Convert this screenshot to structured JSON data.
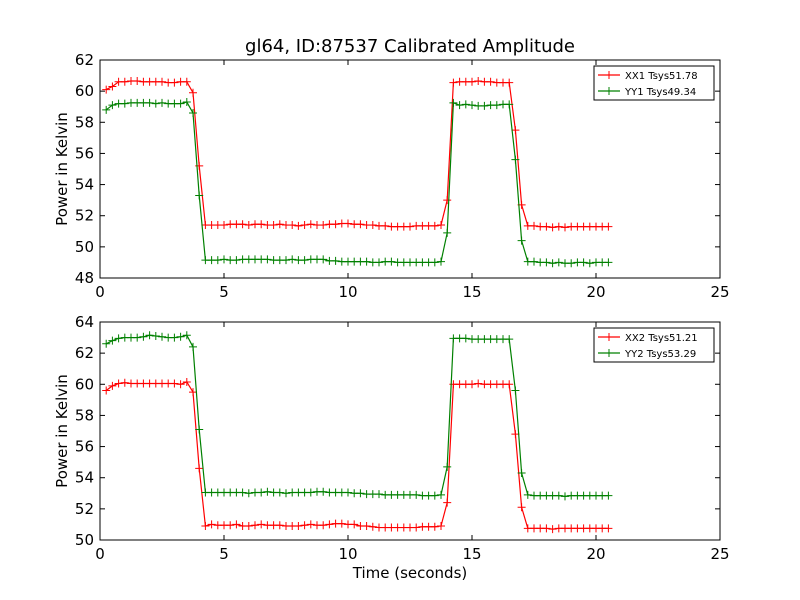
{
  "figure": {
    "title": "gl64, ID:87537 Calibrated Amplitude",
    "xlabel": "Time (seconds)"
  },
  "chart_data": [
    {
      "type": "line",
      "ylabel": "Power in Kelvin",
      "xlim": [
        0,
        25
      ],
      "ylim": [
        48,
        62
      ],
      "xticks": [
        0,
        5,
        10,
        15,
        20,
        25
      ],
      "yticks": [
        48,
        50,
        52,
        54,
        56,
        58,
        60,
        62
      ],
      "grid": false,
      "legend_position": "top-right",
      "series": [
        {
          "name": "XX1 Tsys51.78",
          "color": "#ff0000",
          "x": [
            0.25,
            0.5,
            0.75,
            1.0,
            1.25,
            1.5,
            1.75,
            2.0,
            2.25,
            2.5,
            2.75,
            3.0,
            3.25,
            3.5,
            3.75,
            4.0,
            4.25,
            4.5,
            4.75,
            5.0,
            5.25,
            5.5,
            5.75,
            6.0,
            6.25,
            6.5,
            6.75,
            7.0,
            7.25,
            7.5,
            7.75,
            8.0,
            8.25,
            8.5,
            8.75,
            9.0,
            9.25,
            9.5,
            9.75,
            10.0,
            10.25,
            10.5,
            10.75,
            11.0,
            11.25,
            11.5,
            11.75,
            12.0,
            12.25,
            12.5,
            12.75,
            13.0,
            13.25,
            13.5,
            13.75,
            14.0,
            14.25,
            14.5,
            14.75,
            15.0,
            15.25,
            15.5,
            15.75,
            16.0,
            16.25,
            16.5,
            16.75,
            17.0,
            17.25,
            17.5,
            17.75,
            18.0,
            18.25,
            18.5,
            18.75,
            19.0,
            19.25,
            19.5,
            19.75,
            20.0,
            20.25,
            20.5
          ],
          "y": [
            60.1,
            60.3,
            60.6,
            60.6,
            60.65,
            60.65,
            60.6,
            60.6,
            60.6,
            60.6,
            60.55,
            60.55,
            60.6,
            60.6,
            59.9,
            55.2,
            51.4,
            51.4,
            51.4,
            51.4,
            51.45,
            51.45,
            51.45,
            51.4,
            51.45,
            51.45,
            51.4,
            51.4,
            51.45,
            51.4,
            51.4,
            51.35,
            51.4,
            51.45,
            51.4,
            51.4,
            51.45,
            51.45,
            51.5,
            51.5,
            51.45,
            51.45,
            51.4,
            51.4,
            51.35,
            51.35,
            51.3,
            51.3,
            51.3,
            51.3,
            51.35,
            51.35,
            51.35,
            51.35,
            51.4,
            53.0,
            60.55,
            60.6,
            60.6,
            60.6,
            60.65,
            60.6,
            60.6,
            60.55,
            60.55,
            60.55,
            57.5,
            52.7,
            51.35,
            51.35,
            51.3,
            51.3,
            51.25,
            51.3,
            51.25,
            51.3,
            51.3,
            51.3,
            51.3,
            51.3,
            51.3,
            51.3
          ]
        },
        {
          "name": "YY1 Tsys49.34",
          "color": "#008000",
          "x": [
            0.25,
            0.5,
            0.75,
            1.0,
            1.25,
            1.5,
            1.75,
            2.0,
            2.25,
            2.5,
            2.75,
            3.0,
            3.25,
            3.5,
            3.75,
            4.0,
            4.25,
            4.5,
            4.75,
            5.0,
            5.25,
            5.5,
            5.75,
            6.0,
            6.25,
            6.5,
            6.75,
            7.0,
            7.25,
            7.5,
            7.75,
            8.0,
            8.25,
            8.5,
            8.75,
            9.0,
            9.25,
            9.5,
            9.75,
            10.0,
            10.25,
            10.5,
            10.75,
            11.0,
            11.25,
            11.5,
            11.75,
            12.0,
            12.25,
            12.5,
            12.75,
            13.0,
            13.25,
            13.5,
            13.75,
            14.0,
            14.25,
            14.5,
            14.75,
            15.0,
            15.25,
            15.5,
            15.75,
            16.0,
            16.25,
            16.5,
            16.75,
            17.0,
            17.25,
            17.5,
            17.75,
            18.0,
            18.25,
            18.5,
            18.75,
            19.0,
            19.25,
            19.5,
            19.75,
            20.0,
            20.25,
            20.5
          ],
          "y": [
            58.8,
            59.1,
            59.2,
            59.2,
            59.25,
            59.25,
            59.25,
            59.25,
            59.2,
            59.25,
            59.2,
            59.2,
            59.2,
            59.3,
            58.6,
            53.3,
            49.15,
            49.15,
            49.15,
            49.2,
            49.15,
            49.15,
            49.2,
            49.2,
            49.2,
            49.2,
            49.2,
            49.15,
            49.15,
            49.15,
            49.2,
            49.15,
            49.15,
            49.2,
            49.2,
            49.2,
            49.1,
            49.1,
            49.05,
            49.05,
            49.05,
            49.05,
            49.05,
            49.0,
            49.0,
            49.05,
            49.05,
            49.0,
            49.0,
            49.0,
            49.0,
            49.0,
            49.0,
            49.0,
            49.05,
            50.9,
            59.25,
            59.1,
            59.15,
            59.1,
            59.05,
            59.05,
            59.1,
            59.1,
            59.15,
            59.15,
            55.6,
            50.4,
            49.05,
            49.05,
            49.0,
            49.0,
            48.95,
            49.0,
            48.95,
            48.95,
            49.0,
            49.0,
            48.95,
            49.0,
            49.0,
            49.0
          ]
        }
      ]
    },
    {
      "type": "line",
      "ylabel": "Power in Kelvin",
      "xlabel": "Time (seconds)",
      "xlim": [
        0,
        25
      ],
      "ylim": [
        50,
        64
      ],
      "xticks": [
        0,
        5,
        10,
        15,
        20,
        25
      ],
      "yticks": [
        50,
        52,
        54,
        56,
        58,
        60,
        62,
        64
      ],
      "grid": false,
      "legend_position": "top-right",
      "series": [
        {
          "name": "XX2 Tsys51.21",
          "color": "#ff0000",
          "x": [
            0.25,
            0.5,
            0.75,
            1.0,
            1.25,
            1.5,
            1.75,
            2.0,
            2.25,
            2.5,
            2.75,
            3.0,
            3.25,
            3.5,
            3.75,
            4.0,
            4.25,
            4.5,
            4.75,
            5.0,
            5.25,
            5.5,
            5.75,
            6.0,
            6.25,
            6.5,
            6.75,
            7.0,
            7.25,
            7.5,
            7.75,
            8.0,
            8.25,
            8.5,
            8.75,
            9.0,
            9.25,
            9.5,
            9.75,
            10.0,
            10.25,
            10.5,
            10.75,
            11.0,
            11.25,
            11.5,
            11.75,
            12.0,
            12.25,
            12.5,
            12.75,
            13.0,
            13.25,
            13.5,
            13.75,
            14.0,
            14.25,
            14.5,
            14.75,
            15.0,
            15.25,
            15.5,
            15.75,
            16.0,
            16.25,
            16.5,
            16.75,
            17.0,
            17.25,
            17.5,
            17.75,
            18.0,
            18.25,
            18.5,
            18.75,
            19.0,
            19.25,
            19.5,
            19.75,
            20.0,
            20.25,
            20.5
          ],
          "y": [
            59.6,
            59.9,
            60.05,
            60.1,
            60.05,
            60.05,
            60.05,
            60.05,
            60.05,
            60.05,
            60.05,
            60.05,
            60.0,
            60.15,
            59.5,
            54.6,
            50.9,
            51.0,
            50.95,
            50.95,
            50.95,
            51.0,
            50.9,
            50.9,
            50.95,
            51.0,
            50.95,
            50.95,
            50.95,
            50.9,
            50.9,
            50.9,
            50.95,
            51.0,
            50.95,
            50.95,
            51.0,
            51.05,
            51.05,
            51.0,
            51.0,
            50.9,
            50.9,
            50.85,
            50.8,
            50.8,
            50.8,
            50.8,
            50.8,
            50.8,
            50.8,
            50.85,
            50.85,
            50.85,
            50.9,
            52.4,
            60.0,
            60.0,
            60.0,
            60.0,
            60.05,
            60.0,
            60.0,
            60.0,
            60.0,
            60.0,
            56.8,
            52.1,
            50.75,
            50.75,
            50.75,
            50.75,
            50.7,
            50.75,
            50.75,
            50.75,
            50.75,
            50.75,
            50.75,
            50.75,
            50.75,
            50.75
          ]
        },
        {
          "name": "YY2 Tsys53.29",
          "color": "#008000",
          "x": [
            0.25,
            0.5,
            0.75,
            1.0,
            1.25,
            1.5,
            1.75,
            2.0,
            2.25,
            2.5,
            2.75,
            3.0,
            3.25,
            3.5,
            3.75,
            4.0,
            4.25,
            4.5,
            4.75,
            5.0,
            5.25,
            5.5,
            5.75,
            6.0,
            6.25,
            6.5,
            6.75,
            7.0,
            7.25,
            7.5,
            7.75,
            8.0,
            8.25,
            8.5,
            8.75,
            9.0,
            9.25,
            9.5,
            9.75,
            10.0,
            10.25,
            10.5,
            10.75,
            11.0,
            11.25,
            11.5,
            11.75,
            12.0,
            12.25,
            12.5,
            12.75,
            13.0,
            13.25,
            13.5,
            13.75,
            14.0,
            14.25,
            14.5,
            14.75,
            15.0,
            15.25,
            15.5,
            15.75,
            16.0,
            16.25,
            16.5,
            16.75,
            17.0,
            17.25,
            17.5,
            17.75,
            18.0,
            18.25,
            18.5,
            18.75,
            19.0,
            19.25,
            19.5,
            19.75,
            20.0,
            20.25,
            20.5
          ],
          "y": [
            62.6,
            62.8,
            62.95,
            63.0,
            63.0,
            63.0,
            63.05,
            63.15,
            63.1,
            63.05,
            63.0,
            63.0,
            63.05,
            63.15,
            62.4,
            57.1,
            53.05,
            53.05,
            53.05,
            53.05,
            53.05,
            53.05,
            53.05,
            53.0,
            53.05,
            53.05,
            53.1,
            53.05,
            53.05,
            53.0,
            53.05,
            53.05,
            53.05,
            53.05,
            53.1,
            53.1,
            53.05,
            53.05,
            53.05,
            53.05,
            53.0,
            53.0,
            52.95,
            52.95,
            52.95,
            52.9,
            52.9,
            52.9,
            52.9,
            52.9,
            52.9,
            52.85,
            52.85,
            52.85,
            52.9,
            54.7,
            62.95,
            62.95,
            62.95,
            62.9,
            62.9,
            62.9,
            62.9,
            62.9,
            62.9,
            62.9,
            59.6,
            54.3,
            52.9,
            52.85,
            52.85,
            52.85,
            52.85,
            52.85,
            52.8,
            52.85,
            52.85,
            52.85,
            52.85,
            52.85,
            52.85,
            52.85
          ]
        }
      ]
    }
  ]
}
